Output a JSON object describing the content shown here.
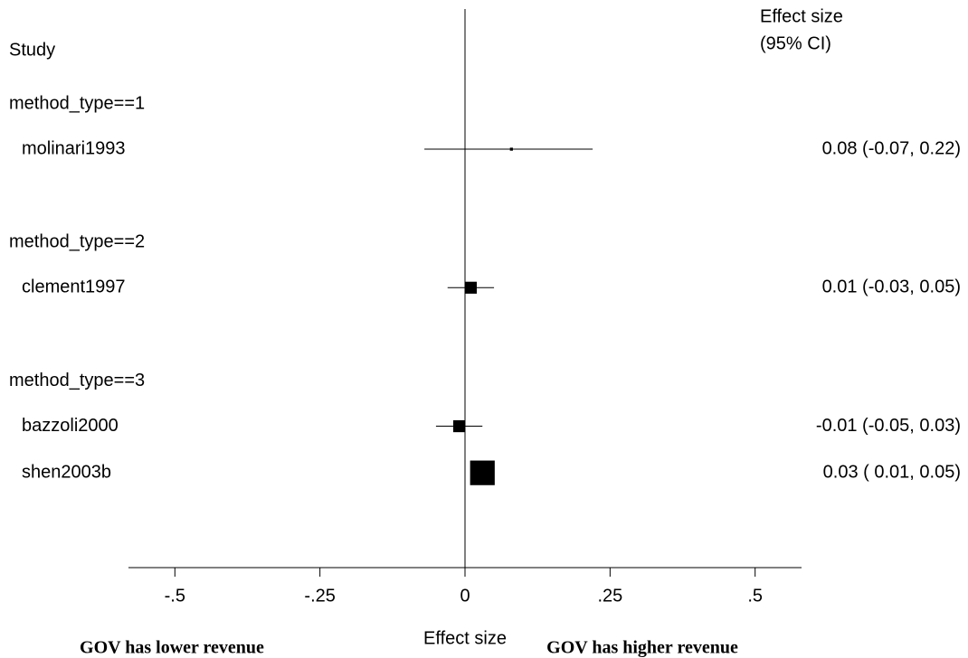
{
  "chart_data": {
    "type": "forest",
    "study_header": "Study",
    "effect_header": [
      "Effect size",
      "(95% CI)"
    ],
    "groups": [
      {
        "label": "method_type==1",
        "studies": [
          {
            "name": "molinari1993",
            "value": 0.08,
            "ci": [
              -0.07,
              0.22
            ],
            "value_label": "0.08 (-0.07, 0.22)",
            "weight": 1
          }
        ]
      },
      {
        "label": "method_type==2",
        "studies": [
          {
            "name": "clement1997",
            "value": 0.01,
            "ci": [
              -0.03,
              0.05
            ],
            "value_label": "0.01 (-0.03, 0.05)",
            "weight": 16
          }
        ]
      },
      {
        "label": "method_type==3",
        "studies": [
          {
            "name": "bazzoli2000",
            "value": -0.01,
            "ci": [
              -0.05,
              0.03
            ],
            "value_label": "-0.01 (-0.05, 0.03)",
            "weight": 16
          },
          {
            "name": "shen2003b",
            "value": 0.03,
            "ci": [
              0.01,
              0.05
            ],
            "value_label": "0.03 ( 0.01, 0.05)",
            "weight": 68
          }
        ]
      }
    ],
    "xlim": [
      -0.58,
      0.58
    ],
    "xticks": [
      {
        "value": -0.5,
        "label": "-.5"
      },
      {
        "value": -0.25,
        "label": "-.25"
      },
      0,
      {
        "value": 0.25,
        "label": ".25"
      },
      {
        "value": 0.5,
        "label": ".5"
      }
    ],
    "xlabel": "Effect size",
    "annotations": [
      "GOV has lower revenue",
      "GOV has higher revenue"
    ],
    "color": "#000000"
  }
}
